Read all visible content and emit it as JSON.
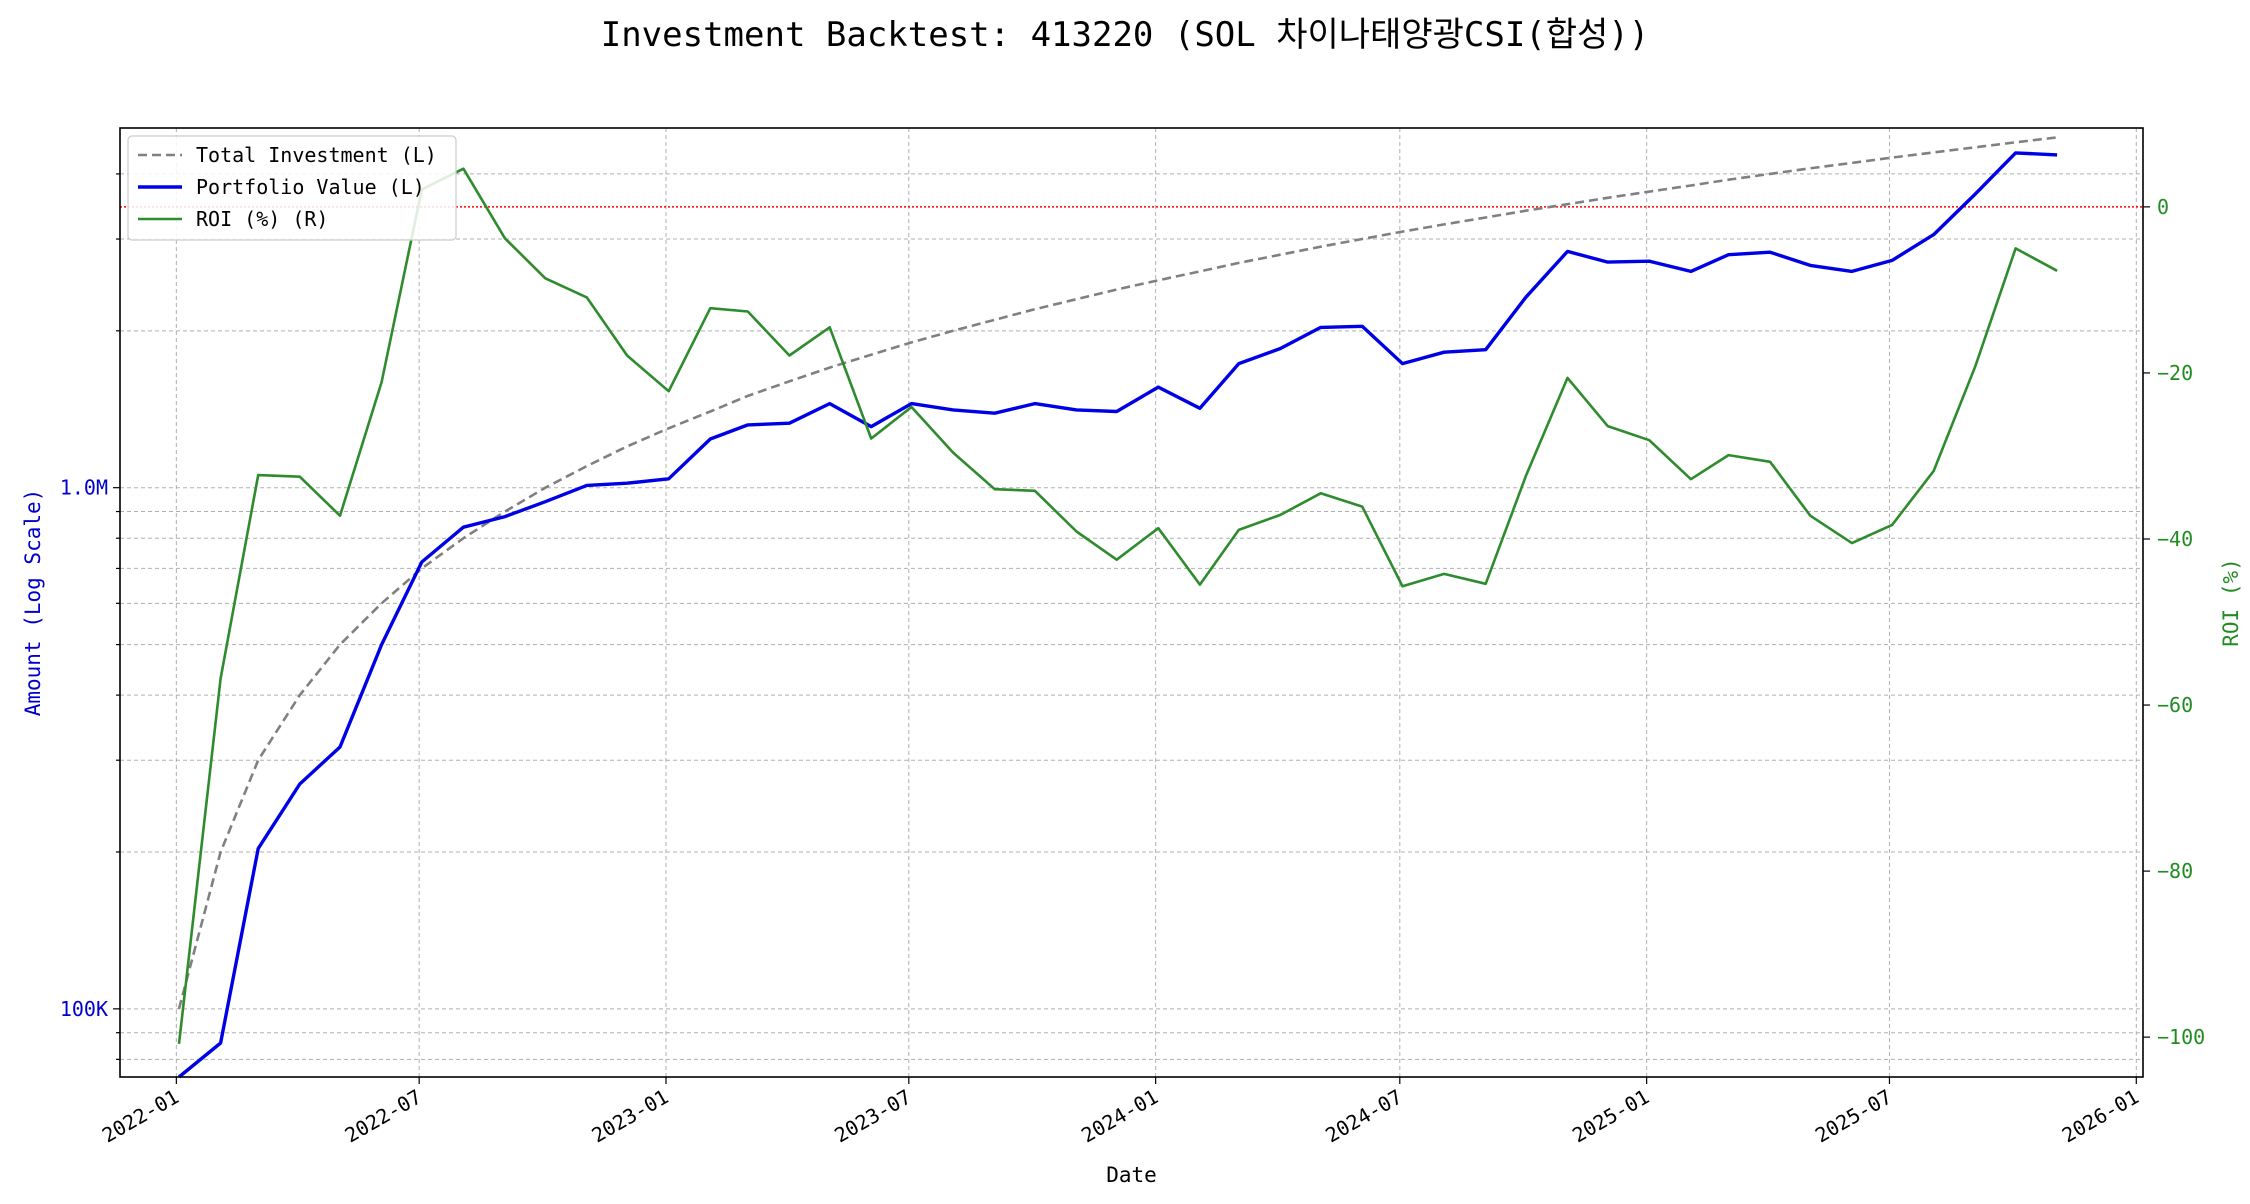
{
  "chart_data": {
    "type": "line",
    "title": "Investment Backtest: 413220 (SOL 차이나태양광CSI(합성))",
    "xlabel": "Date",
    "ylabel_left": "Amount (Log Scale)",
    "ylabel_right": "ROI (%)",
    "left_axis_scale": "log",
    "left_ylim": [
      74000,
      4900000
    ],
    "right_ylim": [
      -104.8,
      9.5
    ],
    "x_range": [
      "2021-11-20",
      "2026-01-06"
    ],
    "x_tick_labels": [
      "2022-01",
      "2022-07",
      "2023-01",
      "2023-07",
      "2024-01",
      "2024-07",
      "2025-01",
      "2025-07",
      "2026-01"
    ],
    "left_tick_labels": [
      {
        "value": 100000,
        "label": "100K"
      },
      {
        "value": 1000000,
        "label": "1.0M"
      }
    ],
    "right_tick_labels": [
      0,
      -20,
      -40,
      -60,
      -80,
      -100
    ],
    "grid": true,
    "legend_position": "top-left",
    "reference_line": {
      "axis": "right",
      "value": 0,
      "color": "#ff0000",
      "style": "dotted"
    },
    "colors": {
      "left_axis": "#0000cc",
      "right_axis": "#228b22",
      "total_investment": "#808080",
      "portfolio_value": "#0000e6",
      "roi": "#2e8b2e"
    },
    "x": [
      "2022-01-03",
      "2022-02-03",
      "2022-03-03",
      "2022-04-03",
      "2022-05-03",
      "2022-06-03",
      "2022-07-03",
      "2022-08-03",
      "2022-09-03",
      "2022-10-03",
      "2022-11-03",
      "2022-12-03",
      "2023-01-03",
      "2023-02-03",
      "2023-03-03",
      "2023-04-03",
      "2023-05-03",
      "2023-06-03",
      "2023-07-03",
      "2023-08-03",
      "2023-09-03",
      "2023-10-03",
      "2023-11-03",
      "2023-12-03",
      "2024-01-03",
      "2024-02-03",
      "2024-03-03",
      "2024-04-03",
      "2024-05-03",
      "2024-06-03",
      "2024-07-03",
      "2024-08-03",
      "2024-09-03",
      "2024-10-03",
      "2024-11-03",
      "2024-12-03",
      "2025-01-03",
      "2025-02-03",
      "2025-03-03",
      "2025-04-03",
      "2025-05-03",
      "2025-06-03",
      "2025-07-03",
      "2025-08-03",
      "2025-09-03",
      "2025-10-03",
      "2025-11-03"
    ],
    "series": [
      {
        "name": "Total Investment (L)",
        "axis": "left",
        "style": "dashed",
        "values": [
          100000,
          200000,
          300000,
          400000,
          500000,
          600000,
          700000,
          800000,
          900000,
          1000000,
          1100000,
          1200000,
          1300000,
          1400000,
          1500000,
          1600000,
          1700000,
          1800000,
          1900000,
          2000000,
          2100000,
          2200000,
          2300000,
          2400000,
          2500000,
          2600000,
          2700000,
          2800000,
          2900000,
          3000000,
          3100000,
          3200000,
          3300000,
          3400000,
          3500000,
          3600000,
          3700000,
          3800000,
          3900000,
          4000000,
          4100000,
          4200000,
          4300000,
          4400000,
          4500000,
          4600000,
          4700000
        ]
      },
      {
        "name": "Portfolio Value (L)",
        "axis": "left",
        "style": "solid",
        "values": [
          74000,
          86000,
          203000,
          270000,
          318000,
          500000,
          720000,
          840000,
          880000,
          940000,
          1010000,
          1020000,
          1040000,
          1240000,
          1320000,
          1330000,
          1450000,
          1310000,
          1450000,
          1410000,
          1390000,
          1450000,
          1410000,
          1400000,
          1560000,
          1420000,
          1730000,
          1850000,
          2030000,
          2040000,
          1730000,
          1820000,
          1840000,
          2320000,
          2840000,
          2710000,
          2720000,
          2600000,
          2800000,
          2830000,
          2670000,
          2600000,
          2730000,
          3060000,
          3660000,
          4390000,
          4350000
        ]
      },
      {
        "name": "ROI (%) (R)",
        "axis": "right",
        "style": "solid",
        "values": [
          -100.8,
          -56.8,
          -32.3,
          -32.5,
          -37.2,
          -21.1,
          2.1,
          4.6,
          -3.8,
          -8.6,
          -10.9,
          -17.9,
          -22.2,
          -12.2,
          -12.6,
          -17.9,
          -14.5,
          -27.9,
          -24.1,
          -29.6,
          -34.0,
          -34.2,
          -39.1,
          -42.5,
          -38.7,
          -45.5,
          -38.9,
          -37.1,
          -34.5,
          -36.1,
          -45.7,
          -44.2,
          -45.4,
          -32.4,
          -20.6,
          -26.4,
          -28.1,
          -32.8,
          -29.9,
          -30.7,
          -37.2,
          -40.5,
          -38.3,
          -31.8,
          -19.2,
          -5.0,
          -7.7
        ]
      }
    ]
  }
}
